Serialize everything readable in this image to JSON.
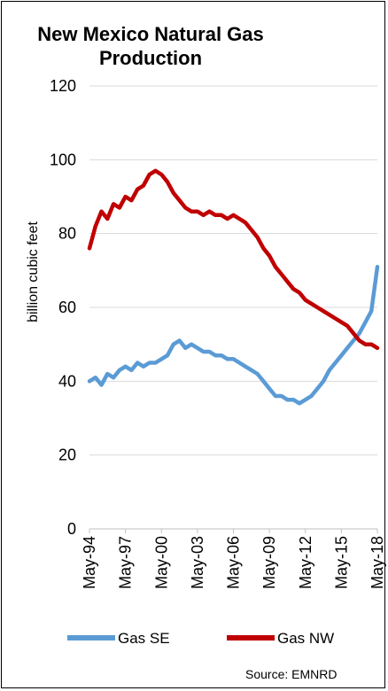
{
  "chart_data": {
    "type": "line",
    "title_line1": "New Mexico Natural Gas",
    "title_line2": "Production",
    "ylabel": "billion cubic feet",
    "xlabel": "",
    "ylim": [
      0,
      120
    ],
    "yticks": [
      "0",
      "20",
      "40",
      "60",
      "80",
      "100",
      "120"
    ],
    "xticks": [
      "May-94",
      "May-97",
      "May-00",
      "May-03",
      "May-06",
      "May-09",
      "May-12",
      "May-15",
      "May-18"
    ],
    "x_start": "May-94",
    "x_end": "May-18",
    "grid": "horizontal",
    "legend_position": "bottom",
    "series": [
      {
        "name": "Gas SE",
        "color": "#5B9BD5",
        "x": [
          "May-94",
          "Nov-94",
          "May-95",
          "Nov-95",
          "May-96",
          "Nov-96",
          "May-97",
          "Nov-97",
          "May-98",
          "Nov-98",
          "May-99",
          "Nov-99",
          "May-00",
          "Nov-00",
          "May-01",
          "Nov-01",
          "May-02",
          "Nov-02",
          "May-03",
          "Nov-03",
          "May-04",
          "Nov-04",
          "May-05",
          "Nov-05",
          "May-06",
          "Nov-06",
          "May-07",
          "Nov-07",
          "May-08",
          "Nov-08",
          "May-09",
          "Nov-09",
          "May-10",
          "Nov-10",
          "May-11",
          "Nov-11",
          "May-12",
          "Nov-12",
          "May-13",
          "Nov-13",
          "May-14",
          "Nov-14",
          "May-15",
          "Nov-15",
          "May-16",
          "Nov-16",
          "May-17",
          "Nov-17",
          "May-18"
        ],
        "values": [
          40,
          41,
          39,
          42,
          41,
          43,
          44,
          43,
          45,
          44,
          45,
          45,
          46,
          47,
          50,
          51,
          49,
          50,
          49,
          48,
          48,
          47,
          47,
          46,
          46,
          45,
          44,
          43,
          42,
          40,
          38,
          36,
          36,
          35,
          35,
          34,
          35,
          36,
          38,
          40,
          43,
          45,
          47,
          49,
          51,
          53,
          56,
          59,
          71
        ]
      },
      {
        "name": "Gas NW",
        "color": "#C00000",
        "x": [
          "May-94",
          "Nov-94",
          "May-95",
          "Nov-95",
          "May-96",
          "Nov-96",
          "May-97",
          "Nov-97",
          "May-98",
          "Nov-98",
          "May-99",
          "Nov-99",
          "May-00",
          "Nov-00",
          "May-01",
          "Nov-01",
          "May-02",
          "Nov-02",
          "May-03",
          "Nov-03",
          "May-04",
          "Nov-04",
          "May-05",
          "Nov-05",
          "May-06",
          "Nov-06",
          "May-07",
          "Nov-07",
          "May-08",
          "Nov-08",
          "May-09",
          "Nov-09",
          "May-10",
          "Nov-10",
          "May-11",
          "Nov-11",
          "May-12",
          "Nov-12",
          "May-13",
          "Nov-13",
          "May-14",
          "Nov-14",
          "May-15",
          "Nov-15",
          "May-16",
          "Nov-16",
          "May-17",
          "Nov-17",
          "May-18"
        ],
        "values": [
          76,
          82,
          86,
          84,
          88,
          87,
          90,
          89,
          92,
          93,
          96,
          97,
          96,
          94,
          91,
          89,
          87,
          86,
          86,
          85,
          86,
          85,
          85,
          84,
          85,
          84,
          83,
          81,
          79,
          76,
          74,
          71,
          69,
          67,
          65,
          64,
          62,
          61,
          60,
          59,
          58,
          57,
          56,
          55,
          53,
          51,
          50,
          50,
          49
        ]
      }
    ],
    "legend": [
      "Gas SE",
      "Gas NW"
    ],
    "source_note": "Source: EMNRD"
  }
}
